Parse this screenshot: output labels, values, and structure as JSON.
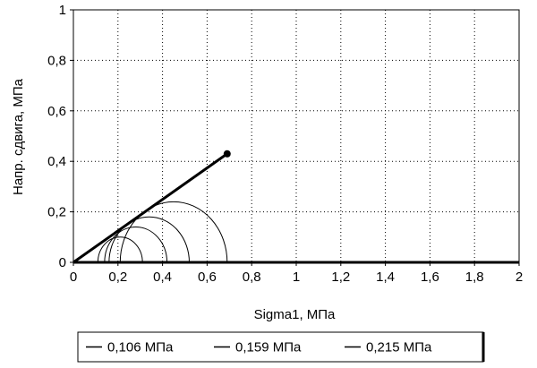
{
  "chart_data": {
    "type": "line",
    "title": "",
    "xlabel": "Sigma1, МПа",
    "ylabel": "Напр. сдвига, МПа",
    "xlim": [
      0,
      2
    ],
    "ylim": [
      0,
      1
    ],
    "x_ticks": [
      0,
      0.2,
      0.4,
      0.6,
      0.8,
      1,
      1.2,
      1.4,
      1.6,
      1.8,
      2
    ],
    "x_tick_labels": [
      "0",
      "0,2",
      "0,4",
      "0,6",
      "0,8",
      "1",
      "1,2",
      "1,4",
      "1,6",
      "1,8",
      "2"
    ],
    "y_ticks": [
      0,
      0.2,
      0.4,
      0.6,
      0.8,
      1
    ],
    "y_tick_labels": [
      "0",
      "0,2",
      "0,4",
      "0,6",
      "0,8",
      "1"
    ],
    "grid": true,
    "legend_position": "bottom",
    "envelope": {
      "x": [
        0,
        0.69
      ],
      "y": [
        0,
        0.43
      ],
      "endpoint_marker": true,
      "color": "#000000"
    },
    "mohr_circles": [
      {
        "center": 0.21,
        "radius": 0.1
      },
      {
        "center": 0.28,
        "radius": 0.14
      },
      {
        "center": 0.34,
        "radius": 0.18
      },
      {
        "center": 0.45,
        "radius": 0.24
      }
    ],
    "legend": [
      {
        "label": "0,106 МПа",
        "color": "#000000"
      },
      {
        "label": "0,159 МПа",
        "color": "#000000"
      },
      {
        "label": "0,215 МПа",
        "color": "#000000"
      }
    ]
  }
}
